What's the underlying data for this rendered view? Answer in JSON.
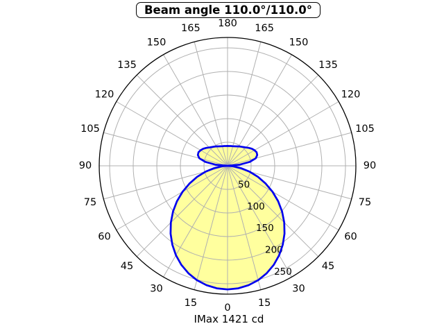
{
  "title": "Beam angle 110.0°/110.0°",
  "footer": "IMax 1421 cd",
  "colors": {
    "curve": "#0000ee",
    "fill": "#ffff9e",
    "grid": "#b0b0b0",
    "outer_ring": "#000000",
    "text": "#000000",
    "background": "#ffffff"
  },
  "chart_data": {
    "type": "polar-intensity",
    "title": "Beam angle 110.0°/110.0°",
    "footer": "IMax 1421 cd",
    "imax_cd": 1421,
    "beam_angle_c0_deg": 110.0,
    "beam_angle_c90_deg": 110.0,
    "theta_ticks_deg": [
      0,
      15,
      30,
      45,
      60,
      75,
      90,
      105,
      120,
      135,
      150,
      165,
      180
    ],
    "theta_tick_step_deg": 15,
    "r_axis": {
      "ticks": [
        50,
        100,
        150,
        200,
        250
      ],
      "max": 272,
      "tick_label_ray_deg": 22.5,
      "grid": true
    },
    "series": [
      {
        "name": "luminous-intensity-curve",
        "symmetric": true,
        "angles_deg": [
          0,
          5,
          10,
          15,
          20,
          25,
          30,
          35,
          40,
          45,
          50,
          55,
          60,
          65,
          70,
          75,
          80,
          85,
          90,
          95,
          100,
          105,
          110,
          115,
          120,
          125,
          130,
          135,
          140,
          145,
          150,
          155,
          160,
          165,
          170,
          175,
          180
        ],
        "values": [
          262,
          260.7,
          257.0,
          250.9,
          242.4,
          231.7,
          218.9,
          204.2,
          187.8,
          169.9,
          150.8,
          130.8,
          110.2,
          89.3,
          68.5,
          48.4,
          29.4,
          12.4,
          0,
          25,
          48,
          62,
          67,
          68,
          66,
          63,
          59,
          55,
          52,
          49.5,
          47.5,
          45.5,
          44,
          43,
          42.5,
          42,
          42
        ]
      }
    ]
  }
}
